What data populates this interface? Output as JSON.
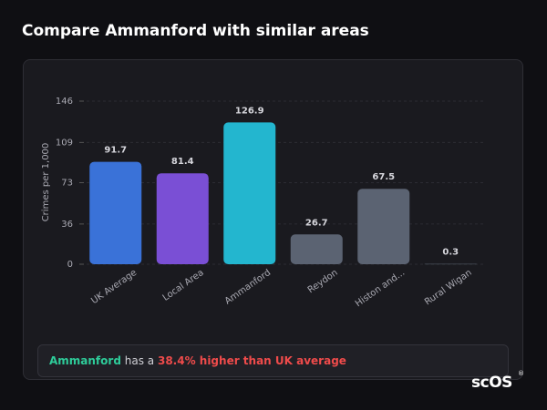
{
  "title": "Compare Ammanford with similar areas",
  "chart_data": {
    "type": "bar",
    "y_label": "Crimes per 1,000",
    "categories": [
      "UK Average",
      "Local Area",
      "Ammanford",
      "Reydon",
      "Histon and...",
      "Rural Wigan"
    ],
    "values": [
      91.7,
      81.4,
      126.9,
      26.7,
      67.5,
      0.3
    ],
    "colors": [
      "#3a72d8",
      "#7a4fd5",
      "#23b6cf",
      "#5b6372",
      "#5b6372",
      "#5b6372"
    ],
    "ylim": [
      0,
      146
    ],
    "yticks": [
      0,
      36,
      73,
      109,
      146
    ],
    "grid": true
  },
  "footer": {
    "area": "Ammanford",
    "text": "has a",
    "highlight": "38.4% higher than UK average"
  },
  "logo": {
    "text": "scOS",
    "mark": "®"
  }
}
